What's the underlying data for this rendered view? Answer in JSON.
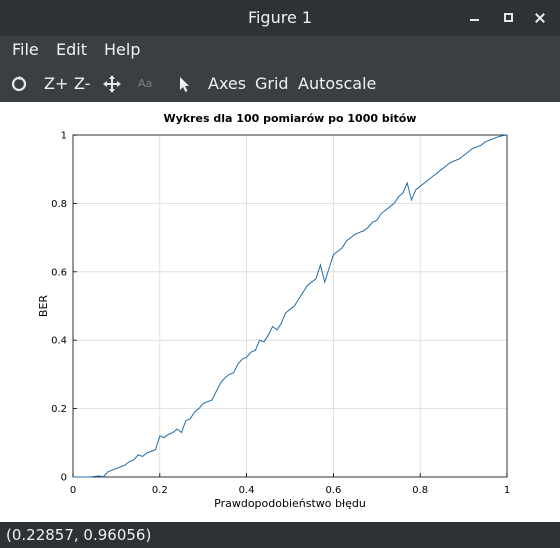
{
  "window": {
    "title": "Figure 1"
  },
  "menu": {
    "items": [
      "File",
      "Edit",
      "Help"
    ]
  },
  "toolbar": {
    "zoom_in": "Z+",
    "zoom_out": "Z-",
    "text_tool": "Aa",
    "axes": "Axes",
    "grid": "Grid",
    "autoscale": "Autoscale"
  },
  "status": {
    "coordinates": "(0.22857, 0.96056)"
  },
  "chart_data": {
    "type": "line",
    "title": "Wykres dla 100 pomiarów po 1000 bitów",
    "xlabel": "Prawdopodobieństwo błędu",
    "ylabel": "BER",
    "xlim": [
      0,
      1
    ],
    "ylim": [
      0,
      1
    ],
    "xticks": [
      "0",
      "0.2",
      "0.4",
      "0.6",
      "0.8",
      "1"
    ],
    "yticks": [
      "0",
      "0.2",
      "0.4",
      "0.6",
      "0.8",
      "1"
    ],
    "grid": true,
    "line_color": "#1f6ea8",
    "x": [
      0.0,
      0.01,
      0.02,
      0.03,
      0.04,
      0.05,
      0.06,
      0.07,
      0.08,
      0.09,
      0.1,
      0.11,
      0.12,
      0.13,
      0.14,
      0.15,
      0.16,
      0.17,
      0.18,
      0.19,
      0.2,
      0.21,
      0.22,
      0.23,
      0.24,
      0.25,
      0.26,
      0.27,
      0.28,
      0.29,
      0.3,
      0.31,
      0.32,
      0.33,
      0.34,
      0.35,
      0.36,
      0.37,
      0.38,
      0.39,
      0.4,
      0.41,
      0.42,
      0.43,
      0.44,
      0.45,
      0.46,
      0.47,
      0.48,
      0.49,
      0.5,
      0.51,
      0.52,
      0.53,
      0.54,
      0.55,
      0.56,
      0.57,
      0.58,
      0.59,
      0.6,
      0.61,
      0.62,
      0.63,
      0.64,
      0.65,
      0.66,
      0.67,
      0.68,
      0.69,
      0.7,
      0.71,
      0.72,
      0.73,
      0.74,
      0.75,
      0.76,
      0.77,
      0.78,
      0.79,
      0.8,
      0.81,
      0.82,
      0.83,
      0.84,
      0.85,
      0.86,
      0.87,
      0.88,
      0.89,
      0.9,
      0.91,
      0.92,
      0.93,
      0.94,
      0.95,
      0.96,
      0.97,
      0.98,
      0.99,
      1.0
    ],
    "y": [
      0.0,
      0.0,
      0.0,
      0.0,
      0.0,
      0.002,
      0.003,
      0.001,
      0.015,
      0.02,
      0.025,
      0.03,
      0.035,
      0.045,
      0.05,
      0.065,
      0.06,
      0.07,
      0.075,
      0.08,
      0.12,
      0.115,
      0.125,
      0.13,
      0.14,
      0.13,
      0.165,
      0.17,
      0.19,
      0.2,
      0.215,
      0.22,
      0.225,
      0.25,
      0.275,
      0.29,
      0.3,
      0.305,
      0.33,
      0.345,
      0.35,
      0.365,
      0.37,
      0.4,
      0.395,
      0.415,
      0.44,
      0.43,
      0.45,
      0.48,
      0.49,
      0.5,
      0.52,
      0.54,
      0.56,
      0.57,
      0.58,
      0.62,
      0.57,
      0.61,
      0.65,
      0.66,
      0.67,
      0.69,
      0.7,
      0.71,
      0.715,
      0.72,
      0.73,
      0.745,
      0.75,
      0.77,
      0.78,
      0.79,
      0.8,
      0.82,
      0.83,
      0.86,
      0.81,
      0.84,
      0.85,
      0.86,
      0.87,
      0.88,
      0.89,
      0.9,
      0.91,
      0.92,
      0.925,
      0.93,
      0.94,
      0.95,
      0.96,
      0.965,
      0.97,
      0.98,
      0.985,
      0.99,
      0.995,
      0.998,
      1.0
    ]
  }
}
